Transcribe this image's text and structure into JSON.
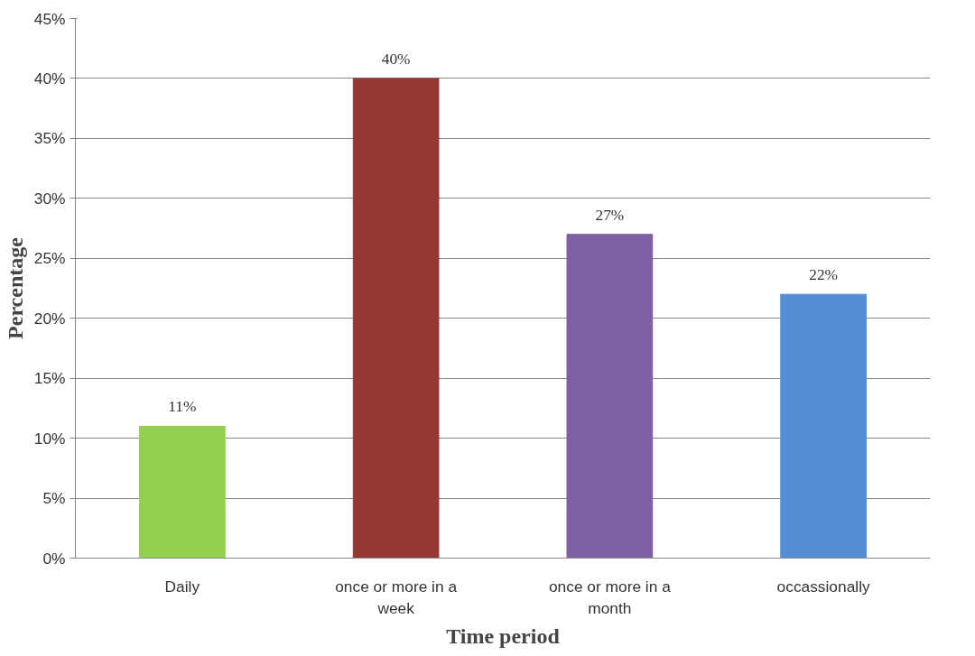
{
  "chart_data": {
    "type": "bar",
    "xlabel": "Time period",
    "ylabel": "Percentage",
    "categories": [
      "Daily",
      "once or more in a week",
      "once or more in a month",
      "occassionally"
    ],
    "values": [
      11,
      40,
      27,
      22
    ],
    "colors": [
      "#92d050",
      "#953735",
      "#7f5fa6",
      "#558ed5"
    ],
    "value_labels": [
      "11%",
      "40%",
      "27%",
      "22%"
    ],
    "ylim": [
      0,
      45
    ],
    "yticks": [
      {
        "value": 0,
        "label": "0%"
      },
      {
        "value": 5,
        "label": "5%"
      },
      {
        "value": 10,
        "label": "10%"
      },
      {
        "value": 15,
        "label": "15%"
      },
      {
        "value": 20,
        "label": "20%"
      },
      {
        "value": 25,
        "label": "25%"
      },
      {
        "value": 30,
        "label": "30%"
      },
      {
        "value": 35,
        "label": "35%"
      },
      {
        "value": 40,
        "label": "40%"
      },
      {
        "value": 45,
        "label": "45%"
      }
    ],
    "grid": "y"
  }
}
